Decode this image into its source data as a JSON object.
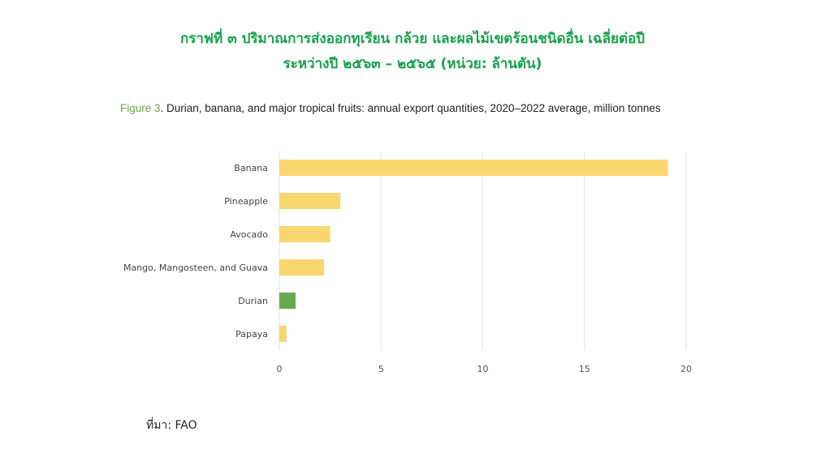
{
  "thai_title": {
    "line1": "กราฟที่ ๓ ปริมาณการส่งออกทุเรียน กล้วย และผลไม้เขตร้อนชนิดอื่น เฉลี่ยต่อปี",
    "line2": "ระหว่างปี ๒๕๖๓ – ๒๕๖๕ (หน่วย: ล้านตัน)"
  },
  "caption": {
    "figure_label": "Figure 3",
    "text": ". Durian, banana, and major tropical fruits: annual export quantities, 2020–2022 average, million tonnes"
  },
  "source": "ที่มา: FAO",
  "colors": {
    "bar_default": "#fad66e",
    "bar_highlight": "#6aa84f",
    "thai_title": "#16a34a",
    "grid": "#e3e3e3"
  },
  "chart_data": {
    "type": "bar",
    "orientation": "horizontal",
    "categories": [
      "Banana",
      "Pineapple",
      "Avocado",
      "Mango, Mangosteen, and Guava",
      "Durian",
      "Papaya"
    ],
    "values": [
      19.1,
      3.0,
      2.5,
      2.2,
      0.8,
      0.35
    ],
    "highlight": "Durian",
    "xlim": [
      0,
      20
    ],
    "xticks": [
      0,
      5,
      10,
      15,
      20
    ],
    "grid": "vertical",
    "legend": "none"
  }
}
